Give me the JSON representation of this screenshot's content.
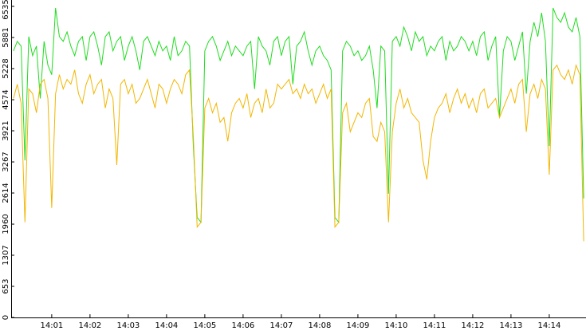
{
  "chart_data": {
    "type": "line",
    "x": [
      0,
      0.1,
      0.2,
      0.3,
      0.4,
      0.5,
      0.6,
      0.7,
      0.8,
      0.9,
      1,
      1.1,
      1.2,
      1.3,
      1.4,
      1.5,
      1.6,
      1.7,
      1.8,
      1.9,
      2,
      2.1,
      2.2,
      2.3,
      2.4,
      2.5,
      2.6,
      2.7,
      2.8,
      2.9,
      3,
      3.1,
      3.2,
      3.3,
      3.4,
      3.5,
      3.6,
      3.7,
      3.8,
      3.9,
      4,
      4.1,
      4.2,
      4.3,
      4.4,
      4.5,
      4.6,
      4.7,
      4.8,
      4.9,
      5,
      5.1,
      5.2,
      5.3,
      5.4,
      5.5,
      5.6,
      5.7,
      5.8,
      5.9,
      6,
      6.1,
      6.2,
      6.3,
      6.4,
      6.5,
      6.6,
      6.7,
      6.8,
      6.9,
      7,
      7.1,
      7.2,
      7.3,
      7.4,
      7.5,
      7.6,
      7.7,
      7.8,
      7.9,
      8,
      8.1,
      8.2,
      8.3,
      8.4,
      8.5,
      8.6,
      8.7,
      8.8,
      8.9,
      9,
      9.1,
      9.2,
      9.3,
      9.4,
      9.5,
      9.6,
      9.7,
      9.8,
      9.9,
      10,
      10.1,
      10.2,
      10.3,
      10.4,
      10.5,
      10.6,
      10.7,
      10.8,
      10.9,
      11,
      11.1,
      11.2,
      11.3,
      11.4,
      11.5,
      11.6,
      11.7,
      11.8,
      11.9,
      12,
      12.1,
      12.2,
      12.3,
      12.4,
      12.5,
      12.6,
      12.7,
      12.8,
      12.9,
      13,
      13.1,
      13.2,
      13.3,
      13.4,
      13.5,
      13.6,
      13.7,
      13.8,
      13.9,
      14,
      14.1,
      14.2,
      14.3,
      14.4,
      14.5,
      14.6,
      14.7,
      14.8,
      14.9
    ],
    "series": [
      {
        "color": "#1fdc1f",
        "values": [
          5600,
          5800,
          5700,
          3300,
          5900,
          5500,
          5700,
          4600,
          5800,
          5300,
          5100,
          6500,
          5900,
          5800,
          6000,
          5700,
          5500,
          5800,
          5900,
          5400,
          5900,
          6000,
          5700,
          5300,
          5900,
          6000,
          5600,
          5800,
          5900,
          5400,
          5700,
          5900,
          5600,
          5200,
          5800,
          5900,
          5700,
          5500,
          5800,
          5600,
          5700,
          5400,
          5900,
          5500,
          5600,
          5800,
          5700,
          3600,
          2100,
          2000,
          5600,
          5800,
          5900,
          5700,
          5400,
          5600,
          5800,
          5500,
          5700,
          5600,
          5500,
          5700,
          5800,
          4800,
          5900,
          5700,
          5600,
          5300,
          5800,
          5900,
          5500,
          5800,
          5900,
          4900,
          5700,
          5800,
          6000,
          5600,
          5300,
          5600,
          5700,
          5500,
          5400,
          5200,
          2100,
          2000,
          5600,
          5800,
          5700,
          5500,
          5600,
          5400,
          5500,
          5700,
          5200,
          4400,
          5700,
          5600,
          2600,
          5800,
          5900,
          5700,
          6100,
          5900,
          5600,
          6000,
          5800,
          5900,
          5500,
          5700,
          5600,
          5800,
          5900,
          5400,
          5800,
          5600,
          5700,
          5900,
          5800,
          5600,
          5800,
          5500,
          5900,
          6000,
          5400,
          5700,
          5900,
          4200,
          5600,
          5900,
          5800,
          5400,
          5700,
          6000,
          4700,
          5800,
          6200,
          5900,
          6400,
          5800,
          3600,
          6500,
          6300,
          6200,
          6400,
          6100,
          6000,
          6300,
          5900,
          2500
        ]
      },
      {
        "color": "#f2b600",
        "values": [
          4600,
          4900,
          4500,
          2000,
          4800,
          4700,
          4300,
          4900,
          5000,
          4600,
          2300,
          4700,
          5100,
          4800,
          5000,
          4900,
          5200,
          4700,
          4500,
          4900,
          5100,
          4700,
          4900,
          5000,
          4400,
          4800,
          4600,
          3200,
          4900,
          5000,
          4700,
          4900,
          4500,
          4600,
          4800,
          5000,
          4700,
          4400,
          4900,
          4800,
          4500,
          4800,
          5000,
          4900,
          4700,
          5100,
          5200,
          3800,
          1900,
          2000,
          4400,
          4600,
          4300,
          4500,
          4100,
          4200,
          3700,
          4300,
          4500,
          4600,
          4400,
          4700,
          4200,
          4500,
          4600,
          4300,
          4800,
          4400,
          4500,
          4900,
          4800,
          4900,
          5000,
          4700,
          4800,
          4600,
          4900,
          4700,
          4800,
          4500,
          4700,
          4900,
          4600,
          4800,
          1900,
          2000,
          4300,
          4500,
          3900,
          4100,
          4300,
          4200,
          4500,
          4600,
          3800,
          3700,
          4100,
          3900,
          2000,
          3900,
          4500,
          4800,
          4400,
          4600,
          4300,
          4200,
          4100,
          3300,
          2900,
          3700,
          4200,
          4400,
          4500,
          4700,
          4300,
          4600,
          4800,
          4500,
          4700,
          4400,
          4600,
          4300,
          4700,
          4800,
          4400,
          4500,
          4600,
          4200,
          4400,
          4600,
          4800,
          4500,
          4900,
          5000,
          3900,
          4700,
          4900,
          4600,
          5000,
          4800,
          3000,
          5200,
          5300,
          5100,
          5000,
          5200,
          4900,
          5300,
          5100,
          1600
        ]
      }
    ],
    "xlim": [
      -0.06,
      14.96
    ],
    "xticks": [
      {
        "value": 1,
        "label": "14:01"
      },
      {
        "value": 2,
        "label": "14:02"
      },
      {
        "value": 3,
        "label": "14:03"
      },
      {
        "value": 4,
        "label": "14:04"
      },
      {
        "value": 5,
        "label": "14:05"
      },
      {
        "value": 6,
        "label": "14:06"
      },
      {
        "value": 7,
        "label": "14:07"
      },
      {
        "value": 8,
        "label": "14:08"
      },
      {
        "value": 9,
        "label": "14:09"
      },
      {
        "value": 10,
        "label": "14:10"
      },
      {
        "value": 11,
        "label": "14:11"
      },
      {
        "value": 12,
        "label": "14:12"
      },
      {
        "value": 13,
        "label": "14:13"
      },
      {
        "value": 14,
        "label": "14:14"
      }
    ],
    "ylim": [
      0,
      6535
    ],
    "yticks": [
      0,
      653,
      1307,
      1960,
      2614,
      3267,
      3921,
      4574,
      5228,
      5881,
      6535
    ]
  }
}
